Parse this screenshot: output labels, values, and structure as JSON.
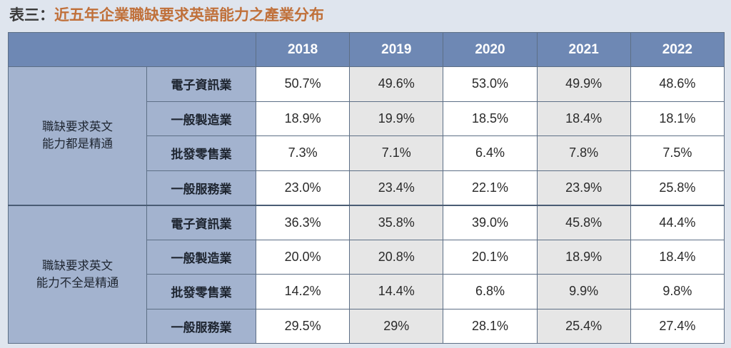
{
  "title": {
    "prefix": "表三：",
    "text": "近五年企業職缺要求英語能力之產業分布"
  },
  "years": [
    "2018",
    "2019",
    "2020",
    "2021",
    "2022"
  ],
  "groups": [
    {
      "label_lines": [
        "職缺要求英文",
        "能力都是精通"
      ],
      "rows": [
        {
          "industry": "電子資訊業",
          "values": [
            "50.7%",
            "49.6%",
            "53.0%",
            "49.9%",
            "48.6%"
          ]
        },
        {
          "industry": "一般製造業",
          "values": [
            "18.9%",
            "19.9%",
            "18.5%",
            "18.4%",
            "18.1%"
          ]
        },
        {
          "industry": "批發零售業",
          "values": [
            "7.3%",
            "7.1%",
            "6.4%",
            "7.8%",
            "7.5%"
          ]
        },
        {
          "industry": "一般服務業",
          "values": [
            "23.0%",
            "23.4%",
            "22.1%",
            "23.9%",
            "25.8%"
          ]
        }
      ]
    },
    {
      "label_lines": [
        "職缺要求英文",
        "能力不全是精通"
      ],
      "rows": [
        {
          "industry": "電子資訊業",
          "values": [
            "36.3%",
            "35.8%",
            "39.0%",
            "45.8%",
            "44.4%"
          ]
        },
        {
          "industry": "一般製造業",
          "values": [
            "20.0%",
            "20.8%",
            "20.1%",
            "18.9%",
            "18.4%"
          ]
        },
        {
          "industry": "批發零售業",
          "values": [
            "14.2%",
            "14.4%",
            "6.8%",
            "9.9%",
            "9.8%"
          ]
        },
        {
          "industry": "一般服務業",
          "values": [
            "29.5%",
            "29%",
            "28.1%",
            "25.4%",
            "27.4%"
          ]
        }
      ]
    }
  ],
  "colors": {
    "header_bg": "#6e88b4",
    "label_bg": "#a3b3cf",
    "shaded_cell": "#e6e6e6",
    "title_accent": "#c0703a",
    "page_bg": "#dfe5ee"
  }
}
